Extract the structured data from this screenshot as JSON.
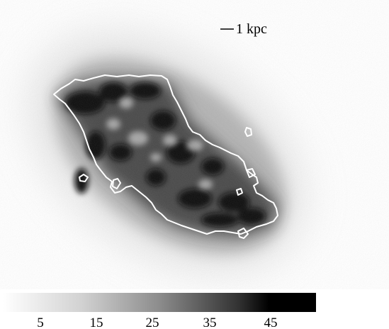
{
  "figure": {
    "type": "grayscale intensity map with single white contour",
    "background_color": "#ffffff",
    "colormap": "white-to-black",
    "contour_color": "#ffffff"
  },
  "scale_bar": {
    "label": "1 kpc"
  },
  "colorbar": {
    "tick_labels": [
      "5",
      "15",
      "25",
      "35",
      "45"
    ],
    "min_color": "#ffffff",
    "max_color": "#000000"
  }
}
